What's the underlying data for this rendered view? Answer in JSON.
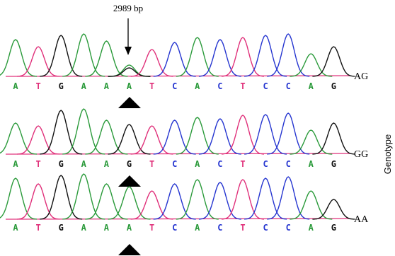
{
  "annotation": {
    "text": "2989 bp"
  },
  "side_label": "Genotype",
  "rows": [
    {
      "bases": [
        "A",
        "T",
        "G",
        "A",
        "A",
        "A",
        "T",
        "C",
        "A",
        "C",
        "T",
        "C",
        "C",
        "A",
        "G"
      ],
      "genotype": "AG"
    },
    {
      "bases": [
        "A",
        "T",
        "G",
        "A",
        "A",
        "G",
        "T",
        "C",
        "A",
        "C",
        "T",
        "C",
        "C",
        "A",
        "G"
      ],
      "genotype": "GG"
    },
    {
      "bases": [
        "A",
        "T",
        "G",
        "A",
        "A",
        "A",
        "T",
        "C",
        "A",
        "C",
        "T",
        "C",
        "C",
        "A",
        "G"
      ],
      "genotype": "AA"
    }
  ]
}
